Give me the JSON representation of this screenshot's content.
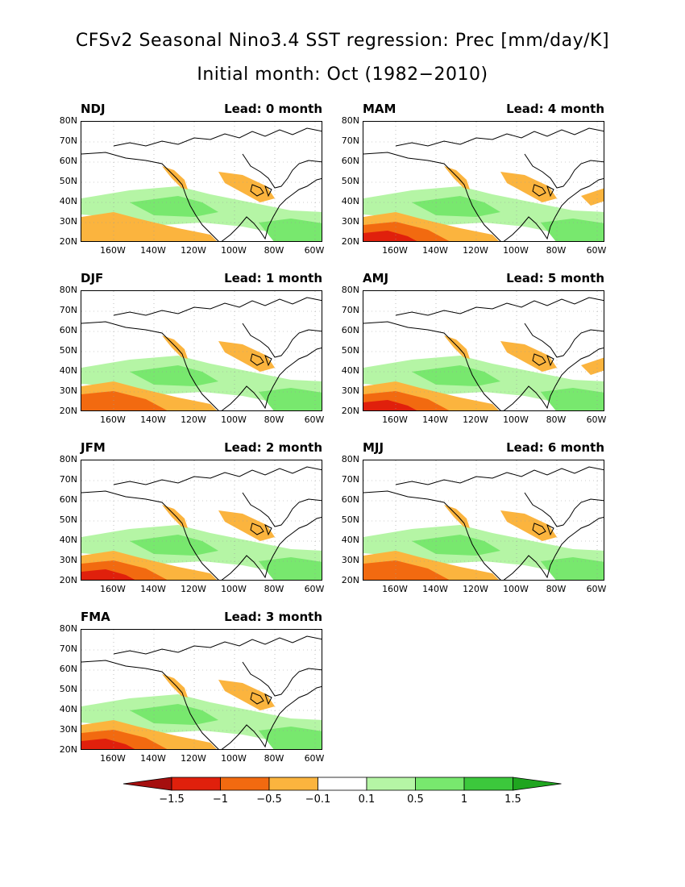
{
  "title_line1": "CFSv2 Seasonal Nino3.4 SST regression: Prec [mm/day/K]",
  "title_line2": "Initial month: Oct (1982−2010)",
  "lat_labels": [
    "80N",
    "70N",
    "60N",
    "50N",
    "40N",
    "30N",
    "20N"
  ],
  "lon_labels": [
    "160W",
    "140W",
    "120W",
    "100W",
    "80W",
    "60W"
  ],
  "panels": [
    {
      "season": "NDJ",
      "lead": "Lead: 0 month"
    },
    {
      "season": "MAM",
      "lead": "Lead: 4 month"
    },
    {
      "season": "DJF",
      "lead": "Lead: 1 month"
    },
    {
      "season": "AMJ",
      "lead": "Lead: 5 month"
    },
    {
      "season": "JFM",
      "lead": "Lead: 2 month"
    },
    {
      "season": "MJJ",
      "lead": "Lead: 6 month"
    },
    {
      "season": "FMA",
      "lead": "Lead: 3 month"
    }
  ],
  "colorbar": {
    "labels": [
      "−1.5",
      "−1",
      "−0.5",
      "−0.1",
      "0.1",
      "0.5",
      "1",
      "1.5"
    ],
    "colors": [
      "#a50f0f",
      "#e0200c",
      "#f26a10",
      "#fbb43e",
      "#ffffff",
      "#b5f5a5",
      "#78e86e",
      "#3cc83c",
      "#1fa51f"
    ]
  },
  "colors": {
    "orange_light": "#fbb43e",
    "orange": "#f26a10",
    "red": "#e0200c",
    "green_light": "#b5f5a5",
    "green": "#78e86e"
  }
}
